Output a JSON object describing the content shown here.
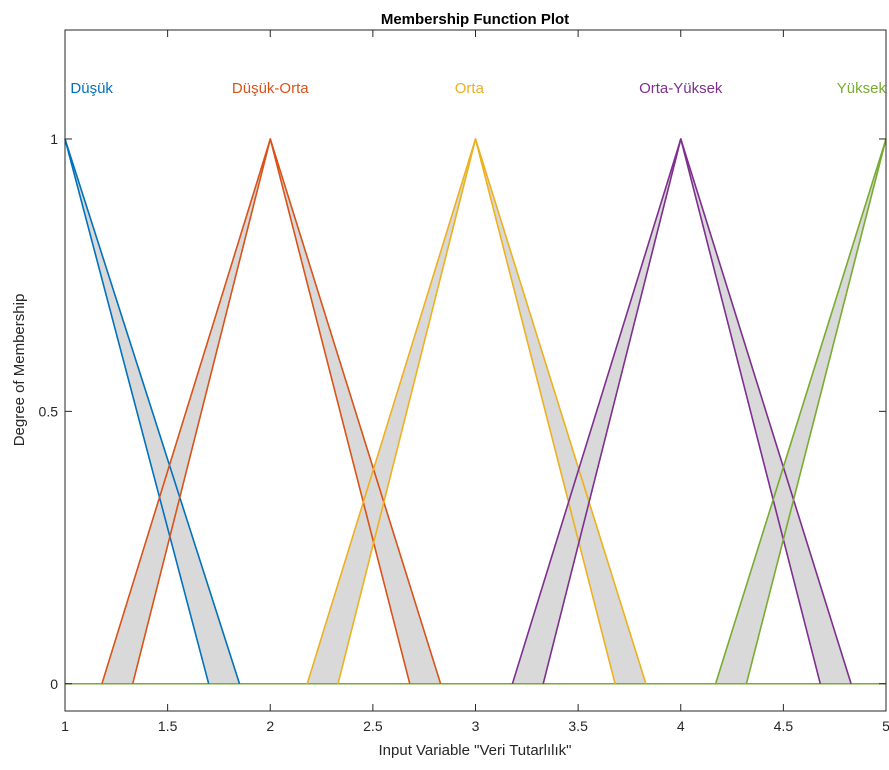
{
  "chart_data": {
    "type": "line",
    "title": "Membership Function Plot",
    "xlabel": "Input Variable \"Veri Tutarlılık\"",
    "ylabel": "Degree of Membership",
    "xlim": [
      1,
      5
    ],
    "ylim": [
      -0.05,
      1.2
    ],
    "xticks": [
      1,
      1.5,
      2,
      2.5,
      3,
      3.5,
      4,
      4.5,
      5
    ],
    "xtick_labels": [
      "1",
      "1.5",
      "2",
      "2.5",
      "3",
      "3.5",
      "4",
      "4.5",
      "5"
    ],
    "yticks": [
      0,
      0.5,
      1
    ],
    "ytick_labels": [
      "0",
      "0.5",
      "1"
    ],
    "grid": false,
    "footprint_fill": "#d9d9d9",
    "frame_color": "#262626",
    "series": [
      {
        "name": "Düşük",
        "color": "#0072bd",
        "upper": [
          [
            1,
            1
          ],
          [
            1.85,
            0
          ]
        ],
        "lower": [
          [
            1,
            1
          ],
          [
            1.7,
            0
          ]
        ],
        "label_x": 1.13
      },
      {
        "name": "Düşük-Orta",
        "color": "#d95319",
        "upper": [
          [
            1.18,
            0
          ],
          [
            2,
            1
          ],
          [
            2.83,
            0
          ]
        ],
        "lower": [
          [
            1.33,
            0
          ],
          [
            2,
            1
          ],
          [
            2.68,
            0
          ]
        ],
        "label_x": 2.0
      },
      {
        "name": "Orta",
        "color": "#edb120",
        "upper": [
          [
            2.18,
            0
          ],
          [
            3,
            1
          ],
          [
            3.83,
            0
          ]
        ],
        "lower": [
          [
            2.33,
            0
          ],
          [
            3,
            1
          ],
          [
            3.68,
            0
          ]
        ],
        "label_x": 2.97
      },
      {
        "name": "Orta-Yüksek",
        "color": "#7e2f8e",
        "upper": [
          [
            3.18,
            0
          ],
          [
            4,
            1
          ],
          [
            4.83,
            0
          ]
        ],
        "lower": [
          [
            3.33,
            0
          ],
          [
            4,
            1
          ],
          [
            4.68,
            0
          ]
        ],
        "label_x": 4.0
      },
      {
        "name": "Yüksek",
        "color": "#77ac30",
        "upper": [
          [
            4.17,
            0
          ],
          [
            5,
            1
          ]
        ],
        "lower": [
          [
            4.32,
            0
          ],
          [
            5,
            1
          ]
        ],
        "label_x": 4.88
      }
    ]
  }
}
